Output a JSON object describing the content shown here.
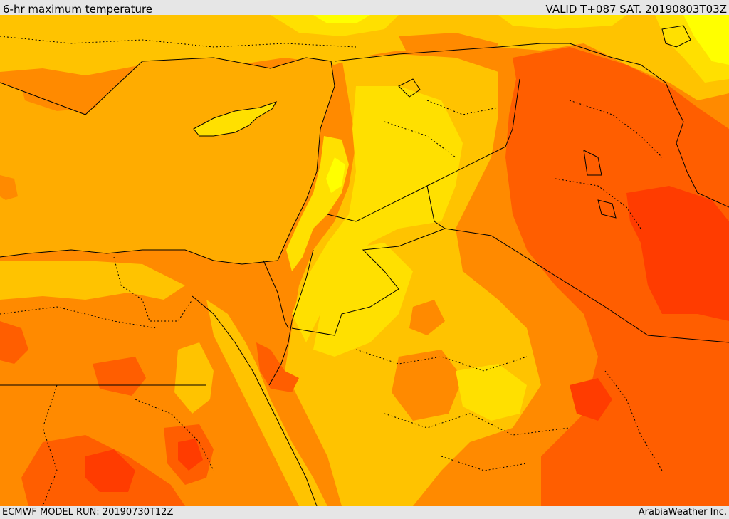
{
  "header": {
    "title": "6-hr maximum temperature",
    "valid": "VALID T+087 SAT. 20190803T03Z"
  },
  "footer": {
    "model_run": "ECMWF MODEL RUN: 20190730T12Z",
    "credit": "ArabiaWeather Inc."
  },
  "map": {
    "colors": {
      "sea": "#FFAC00",
      "orange": "#FF8A00",
      "dark_orange": "#FF5E00",
      "red": "#FF3C00",
      "amber": "#FFC300",
      "yellow": "#FFE000",
      "light_yellow": "#FFFF00",
      "border": "#000000"
    }
  }
}
